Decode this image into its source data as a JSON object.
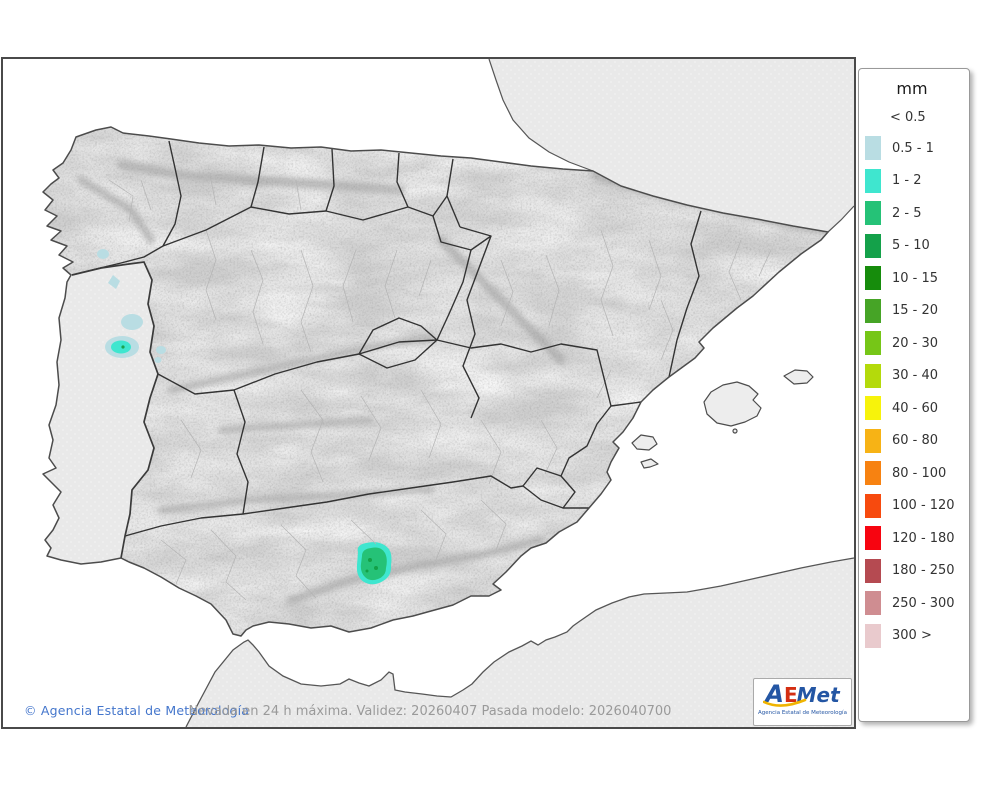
{
  "legend": {
    "title": "mm",
    "below_threshold_label": "< 0.5",
    "entries": [
      {
        "label": "0.5 - 1",
        "color": "#b9dde3"
      },
      {
        "label": "1 - 2",
        "color": "#3fe6cf"
      },
      {
        "label": "2 - 5",
        "color": "#25c277"
      },
      {
        "label": "5 - 10",
        "color": "#14a14a"
      },
      {
        "label": "10 - 15",
        "color": "#168c0c"
      },
      {
        "label": "15 - 20",
        "color": "#46a426"
      },
      {
        "label": "20 - 30",
        "color": "#76c617"
      },
      {
        "label": "30 - 40",
        "color": "#b4da0b"
      },
      {
        "label": "40 - 60",
        "color": "#f7f30b"
      },
      {
        "label": "60 - 80",
        "color": "#f7b315"
      },
      {
        "label": "80 - 100",
        "color": "#f78211"
      },
      {
        "label": "100 - 120",
        "color": "#f74a0e"
      },
      {
        "label": "120 - 180",
        "color": "#f70410"
      },
      {
        "label": "180 - 250",
        "color": "#b54a51"
      },
      {
        "label": "250 - 300",
        "color": "#cf8d91"
      },
      {
        "label": "300 >",
        "color": "#e9cacd"
      }
    ]
  },
  "footer": {
    "copyright": "© Agencia Estatal de Meteorología",
    "caption": "Nevada en 24 h máxima. Validez: 20260407 Pasada modelo: 2026040700"
  },
  "logo": {
    "a": "A",
    "e": "E",
    "met": "Met",
    "subtitle": "Agencia Estatal de Meteorología"
  },
  "snow_areas": [
    {
      "id": "portugal-spot-north",
      "color": "#b9dde3"
    },
    {
      "id": "portugal-spot-teardrop",
      "color": "#b9dde3"
    },
    {
      "id": "portugal-spot-mid",
      "color": "#b9dde3"
    },
    {
      "id": "portugal-blob-outer",
      "color": "#b9dde3"
    },
    {
      "id": "portugal-blob-core",
      "color": "#3fe6cf"
    },
    {
      "id": "portugal-blob-center",
      "color": "#1ca24e"
    },
    {
      "id": "portugal-spot-east",
      "color": "#b9dde3"
    },
    {
      "id": "portugal-spot-southeast",
      "color": "#b9dde3"
    },
    {
      "id": "sierra-nevada-outer",
      "color": "#3fe6cf"
    },
    {
      "id": "sierra-nevada-core",
      "color": "#25c277"
    },
    {
      "id": "sierra-nevada-speck",
      "color": "#12a047"
    }
  ]
}
